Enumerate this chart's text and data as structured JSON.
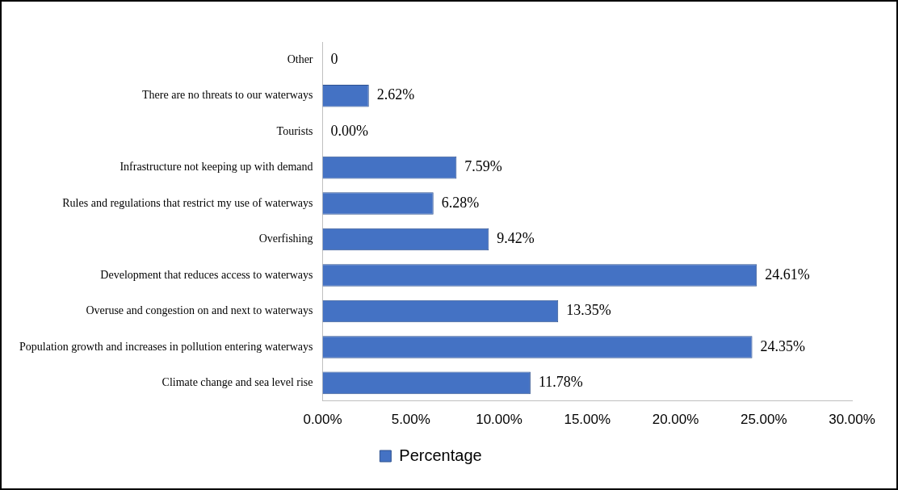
{
  "chart_data": {
    "type": "bar",
    "orientation": "horizontal",
    "categories": [
      "Other",
      "There are no threats to our waterways",
      "Tourists",
      "Infrastructure not keeping up with demand",
      "Rules and regulations that restrict my use of waterways",
      "Overfishing",
      "Development that reduces access to waterways",
      "Overuse and congestion on and next to waterways",
      "Population growth and increases in pollution entering waterways",
      "Climate change and sea level rise"
    ],
    "series": [
      {
        "name": "Percentage",
        "color": "#4472c4",
        "values": [
          0,
          2.62,
          0,
          7.59,
          6.28,
          9.42,
          24.61,
          13.35,
          24.35,
          11.78
        ],
        "value_labels": [
          "0",
          "2.62%",
          "0.00%",
          "7.59%",
          "6.28%",
          "9.42%",
          "24.61%",
          "13.35%",
          "24.35%",
          "11.78%"
        ]
      }
    ],
    "xlim": [
      0,
      30
    ],
    "xticks": [
      {
        "value": 0,
        "label": "0.00%"
      },
      {
        "value": 5,
        "label": "5.00%"
      },
      {
        "value": 10,
        "label": "10.00%"
      },
      {
        "value": 15,
        "label": "15.00%"
      },
      {
        "value": 20,
        "label": "20.00%"
      },
      {
        "value": 25,
        "label": "25.00%"
      },
      {
        "value": 30,
        "label": "30.00%"
      }
    ],
    "grid": false,
    "legend": "bottom"
  }
}
